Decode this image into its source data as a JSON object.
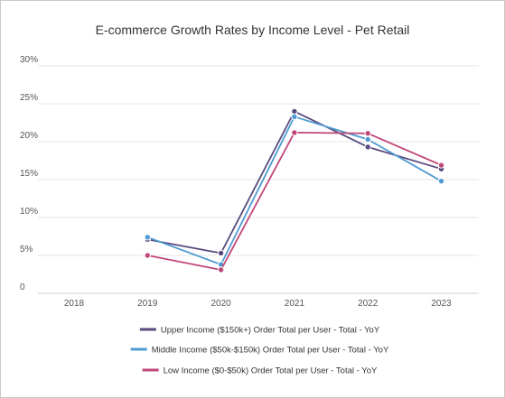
{
  "chart_data": {
    "type": "line",
    "title": "E-commerce Growth Rates by Income Level - Pet Retail",
    "xlabel": "",
    "ylabel": "",
    "categories": [
      "2018",
      "2019",
      "2020",
      "2021",
      "2022",
      "2023"
    ],
    "ylim": [
      0,
      30
    ],
    "y_ticks": [
      0,
      5,
      10,
      15,
      20,
      25,
      30
    ],
    "y_tick_labels": [
      "0",
      "5%",
      "10%",
      "15%",
      "20%",
      "25%",
      "30%"
    ],
    "grid": "horizontal",
    "legend_position": "bottom",
    "series": [
      {
        "name": "Upper Income ($150k+) Order Total per User - Total - YoY",
        "color": "#5a4a7e",
        "values": [
          null,
          7.1,
          5.3,
          24.0,
          19.3,
          16.4
        ]
      },
      {
        "name": "Middle Income ($50k-$150k) Order Total per User - Total - YoY",
        "color": "#4f9bd2",
        "values": [
          null,
          7.4,
          3.8,
          23.3,
          20.3,
          14.8
        ]
      },
      {
        "name": "Low Income ($0-$50k) Order Total per User - Total - YoY",
        "color": "#c0487a",
        "values": [
          null,
          5.0,
          3.1,
          21.2,
          21.1,
          16.9
        ]
      }
    ]
  }
}
